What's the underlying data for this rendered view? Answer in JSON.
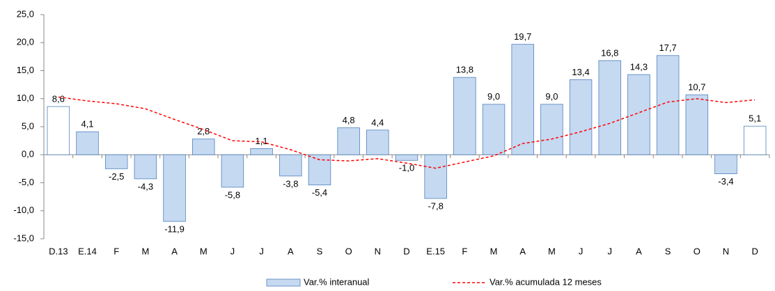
{
  "chart_data": {
    "type": "bar",
    "categories": [
      "D.13",
      "E.14",
      "F",
      "M",
      "A",
      "M",
      "J",
      "J",
      "A",
      "S",
      "O",
      "N",
      "D",
      "E.15",
      "F",
      "M",
      "A",
      "M",
      "J",
      "J",
      "A",
      "S",
      "O",
      "N",
      "D"
    ],
    "ylim": [
      -15,
      25
    ],
    "yticks": [
      {
        "value": -15,
        "label": "-15,0"
      },
      {
        "value": -10,
        "label": "-10,0"
      },
      {
        "value": -5,
        "label": "-5,0"
      },
      {
        "value": 0,
        "label": "0,0"
      },
      {
        "value": 5,
        "label": "5,0"
      },
      {
        "value": 10,
        "label": "10,0"
      },
      {
        "value": 15,
        "label": "15,0"
      },
      {
        "value": 20,
        "label": "20,0"
      },
      {
        "value": 25,
        "label": "25,0"
      }
    ],
    "series": [
      {
        "name": "Var.% interanual",
        "type": "bar",
        "color": "#c5d9f1",
        "edge_color": "#4f81bd",
        "bar_colors": [
          "#ffffff",
          "#c5d9f1",
          "#c5d9f1",
          "#c5d9f1",
          "#c5d9f1",
          "#c5d9f1",
          "#c5d9f1",
          "#c5d9f1",
          "#c5d9f1",
          "#c5d9f1",
          "#c5d9f1",
          "#c5d9f1",
          "#c5d9f1",
          "#c5d9f1",
          "#c5d9f1",
          "#c5d9f1",
          "#c5d9f1",
          "#c5d9f1",
          "#c5d9f1",
          "#c5d9f1",
          "#c5d9f1",
          "#c5d9f1",
          "#c5d9f1",
          "#c5d9f1",
          "#ffffff"
        ],
        "values": [
          8.6,
          4.1,
          -2.5,
          -4.3,
          -11.9,
          2.8,
          -5.8,
          1.1,
          -3.8,
          -5.4,
          4.8,
          4.4,
          -1.0,
          -7.8,
          13.8,
          9.0,
          19.7,
          9.0,
          13.4,
          16.8,
          14.3,
          17.7,
          10.7,
          -3.4,
          5.1
        ],
        "value_labels": [
          "8,6",
          "4,1",
          "-2,5",
          "-4,3",
          "-11,9",
          "2,8",
          "-5,8",
          "1,1",
          "-3,8",
          "-5,4",
          "4,8",
          "4,4",
          "-1,0",
          "-7,8",
          "13,8",
          "9,0",
          "19,7",
          "9,0",
          "13,4",
          "16,8",
          "14,3",
          "17,7",
          "10,7",
          "-3,4",
          "5,1"
        ]
      },
      {
        "name": "Var.% acumulada 12 meses",
        "type": "line",
        "color": "#ff0000",
        "dashed": true,
        "values": [
          10.3,
          9.6,
          9.1,
          8.2,
          6.3,
          4.5,
          2.5,
          2.3,
          0.9,
          -0.9,
          -1.1,
          -0.7,
          -1.5,
          -2.4,
          -1.3,
          -0.2,
          2.0,
          2.8,
          4.1,
          5.6,
          7.5,
          9.4,
          10.0,
          9.3,
          9.8
        ]
      }
    ]
  }
}
